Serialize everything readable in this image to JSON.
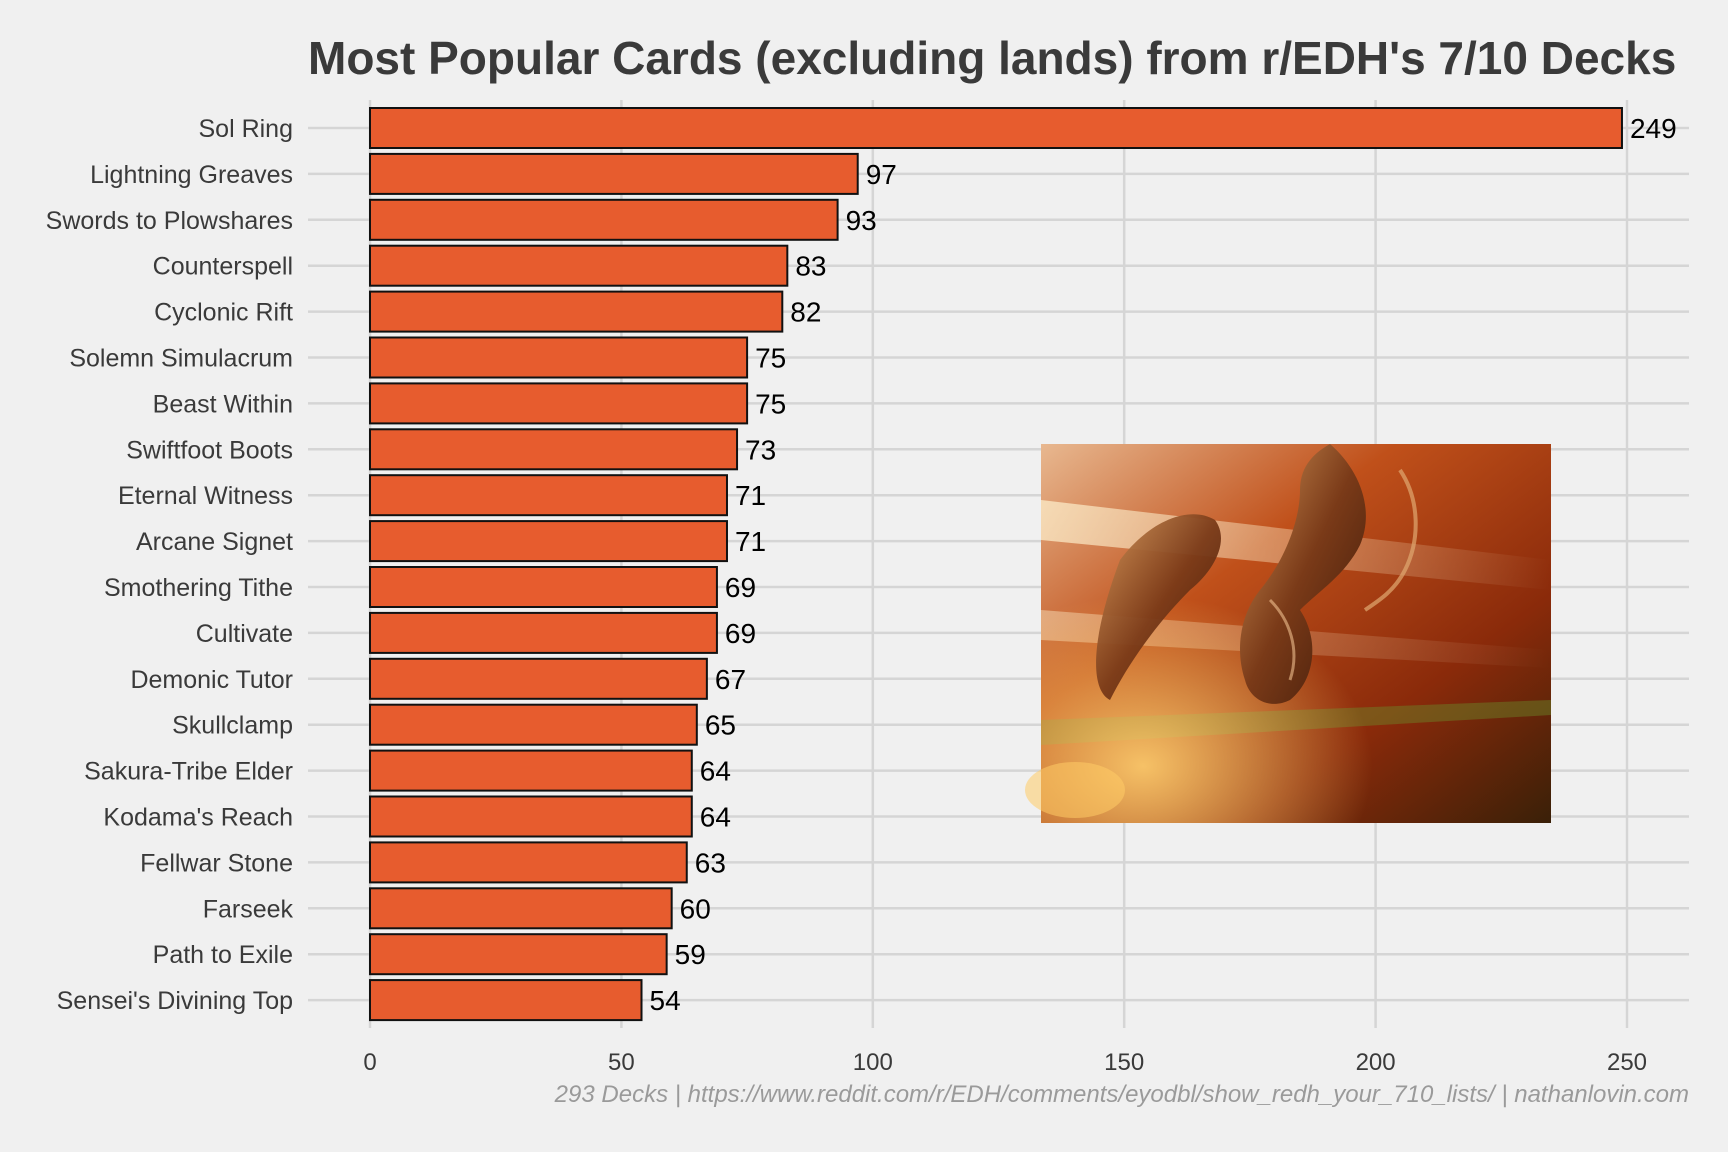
{
  "chart_data": {
    "type": "bar",
    "orientation": "horizontal",
    "title": "Most Popular Cards (excluding lands) from r/EDH's 7/10 Decks",
    "caption": "293 Decks | https://www.reddit.com/r/EDH/comments/eyodbl/show_redh_your_710_lists/ | nathanlovin.com",
    "xlabel": "",
    "ylabel": "",
    "xlim": [
      0,
      260
    ],
    "x_ticks": [
      "0",
      "50",
      "100",
      "150",
      "200",
      "250"
    ],
    "grid": true,
    "legend": "none",
    "bar_color": "#e75c2e",
    "categories": [
      "Sol Ring",
      "Lightning Greaves",
      "Swords to Plowshares",
      "Counterspell",
      "Cyclonic Rift",
      "Solemn Simulacrum",
      "Beast Within",
      "Swiftfoot Boots",
      "Eternal Witness",
      "Arcane Signet",
      "Smothering Tithe",
      "Cultivate",
      "Demonic Tutor",
      "Skullclamp",
      "Sakura-Tribe Elder",
      "Kodama's Reach",
      "Fellwar Stone",
      "Farseek",
      "Path to Exile",
      "Sensei's Divining Top"
    ],
    "values": [
      249,
      97,
      93,
      83,
      82,
      75,
      75,
      73,
      71,
      71,
      69,
      69,
      67,
      65,
      64,
      64,
      63,
      60,
      59,
      54
    ]
  },
  "inset_image": {
    "subject": "swiftfoot-boots-art",
    "colors": [
      "#b03a10",
      "#d9762a",
      "#3a1408",
      "#f2c27a",
      "#5a7a2a"
    ]
  }
}
